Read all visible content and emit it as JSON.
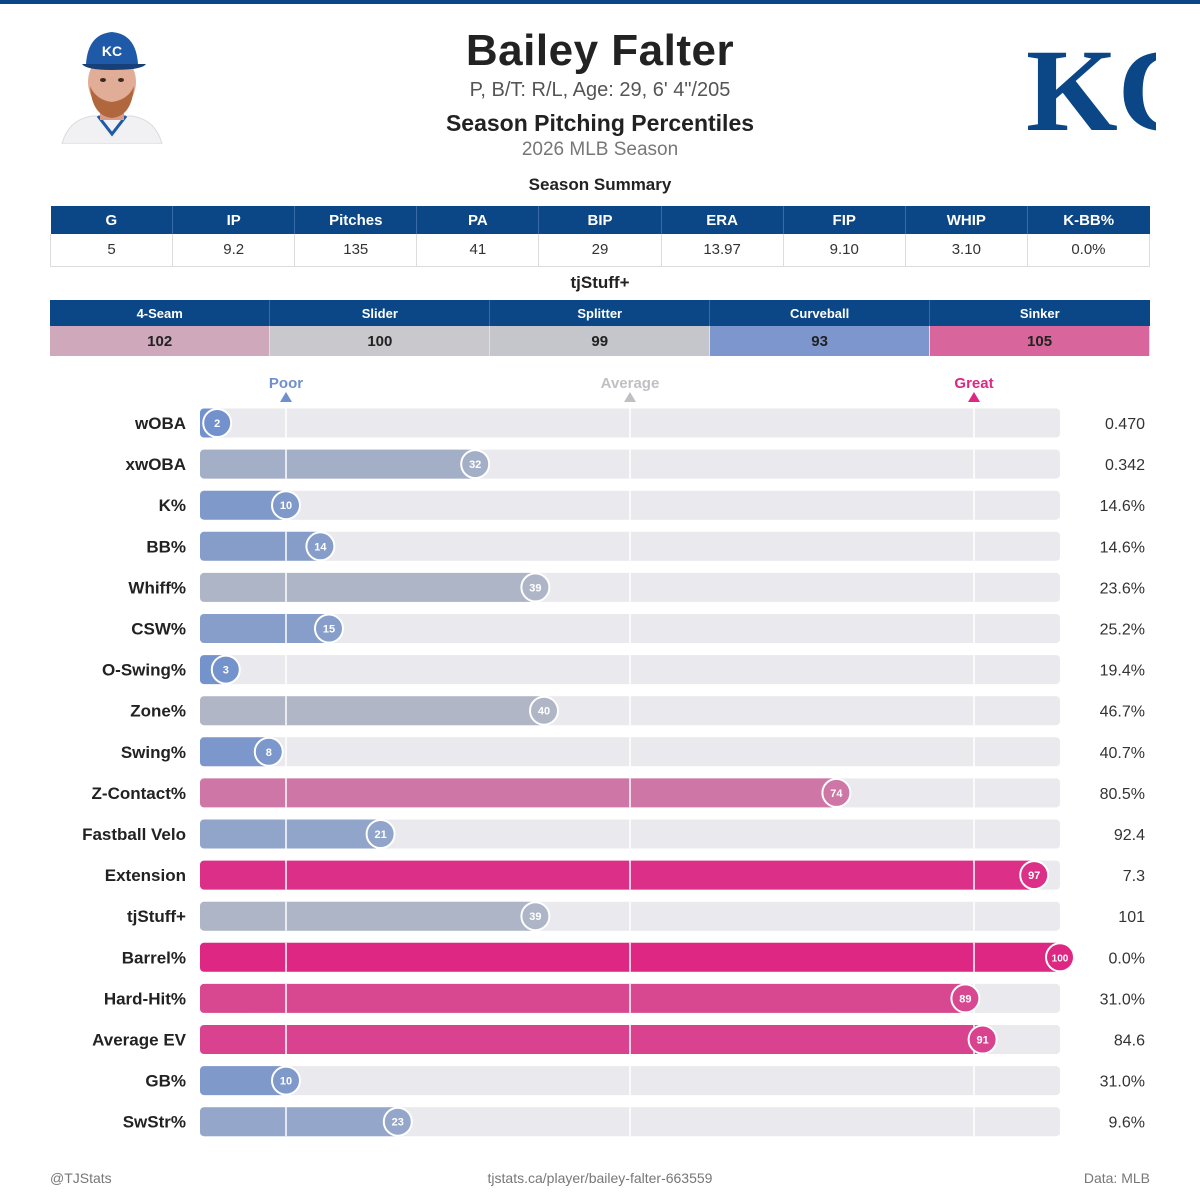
{
  "player": {
    "name": "Bailey Falter",
    "subtitle": "P, B/T: R/L, Age: 29, 6' 4\"/205",
    "team_logo_text": "KC",
    "cap_logo_text": "KC"
  },
  "report": {
    "title": "Season Pitching Percentiles",
    "season": "2026 MLB Season"
  },
  "summary": {
    "title": "Season Summary",
    "headers": [
      "G",
      "IP",
      "Pitches",
      "PA",
      "BIP",
      "ERA",
      "FIP",
      "WHIP",
      "K-BB%"
    ],
    "values": [
      "5",
      "9.2",
      "135",
      "41",
      "29",
      "13.97",
      "9.10",
      "3.10",
      "0.0%"
    ]
  },
  "stuff": {
    "title": "tjStuff+",
    "pitches": [
      {
        "name": "4-Seam",
        "value": "102",
        "color": "#cfa8bb"
      },
      {
        "name": "Slider",
        "value": "100",
        "color": "#c9c9cd"
      },
      {
        "name": "Splitter",
        "value": "99",
        "color": "#c4c6cc"
      },
      {
        "name": "Curveball",
        "value": "93",
        "color": "#7d97ce"
      },
      {
        "name": "Sinker",
        "value": "105",
        "color": "#d8669c"
      }
    ]
  },
  "scale": {
    "poor": "Poor",
    "average": "Average",
    "great": "Great",
    "poor_color": "#6f8fcd",
    "average_color": "#c0c0c4",
    "great_color": "#de2683"
  },
  "chart_data": {
    "type": "bar",
    "orientation": "horizontal",
    "xlim": [
      0,
      100
    ],
    "reference_lines": [
      10,
      50,
      90
    ],
    "categories": [
      "wOBA",
      "xwOBA",
      "K%",
      "BB%",
      "Whiff%",
      "CSW%",
      "O-Swing%",
      "Zone%",
      "Swing%",
      "Z-Contact%",
      "Fastball Velo",
      "Extension",
      "tjStuff+",
      "Barrel%",
      "Hard-Hit%",
      "Average EV",
      "GB%",
      "SwStr%"
    ],
    "percentiles": [
      2,
      32,
      10,
      14,
      39,
      15,
      3,
      40,
      8,
      74,
      21,
      97,
      39,
      100,
      89,
      91,
      10,
      23
    ],
    "stat_values": [
      "0.470",
      "0.342",
      "14.6%",
      "14.6%",
      "23.6%",
      "25.2%",
      "19.4%",
      "46.7%",
      "40.7%",
      "80.5%",
      "92.4",
      "7.3",
      "101",
      "0.0%",
      "31.0%",
      "84.6",
      "31.0%",
      "9.6%"
    ]
  },
  "footer": {
    "left": "@TJStats",
    "center": "tjstats.ca/player/bailey-falter-663559",
    "right": "Data: MLB"
  }
}
